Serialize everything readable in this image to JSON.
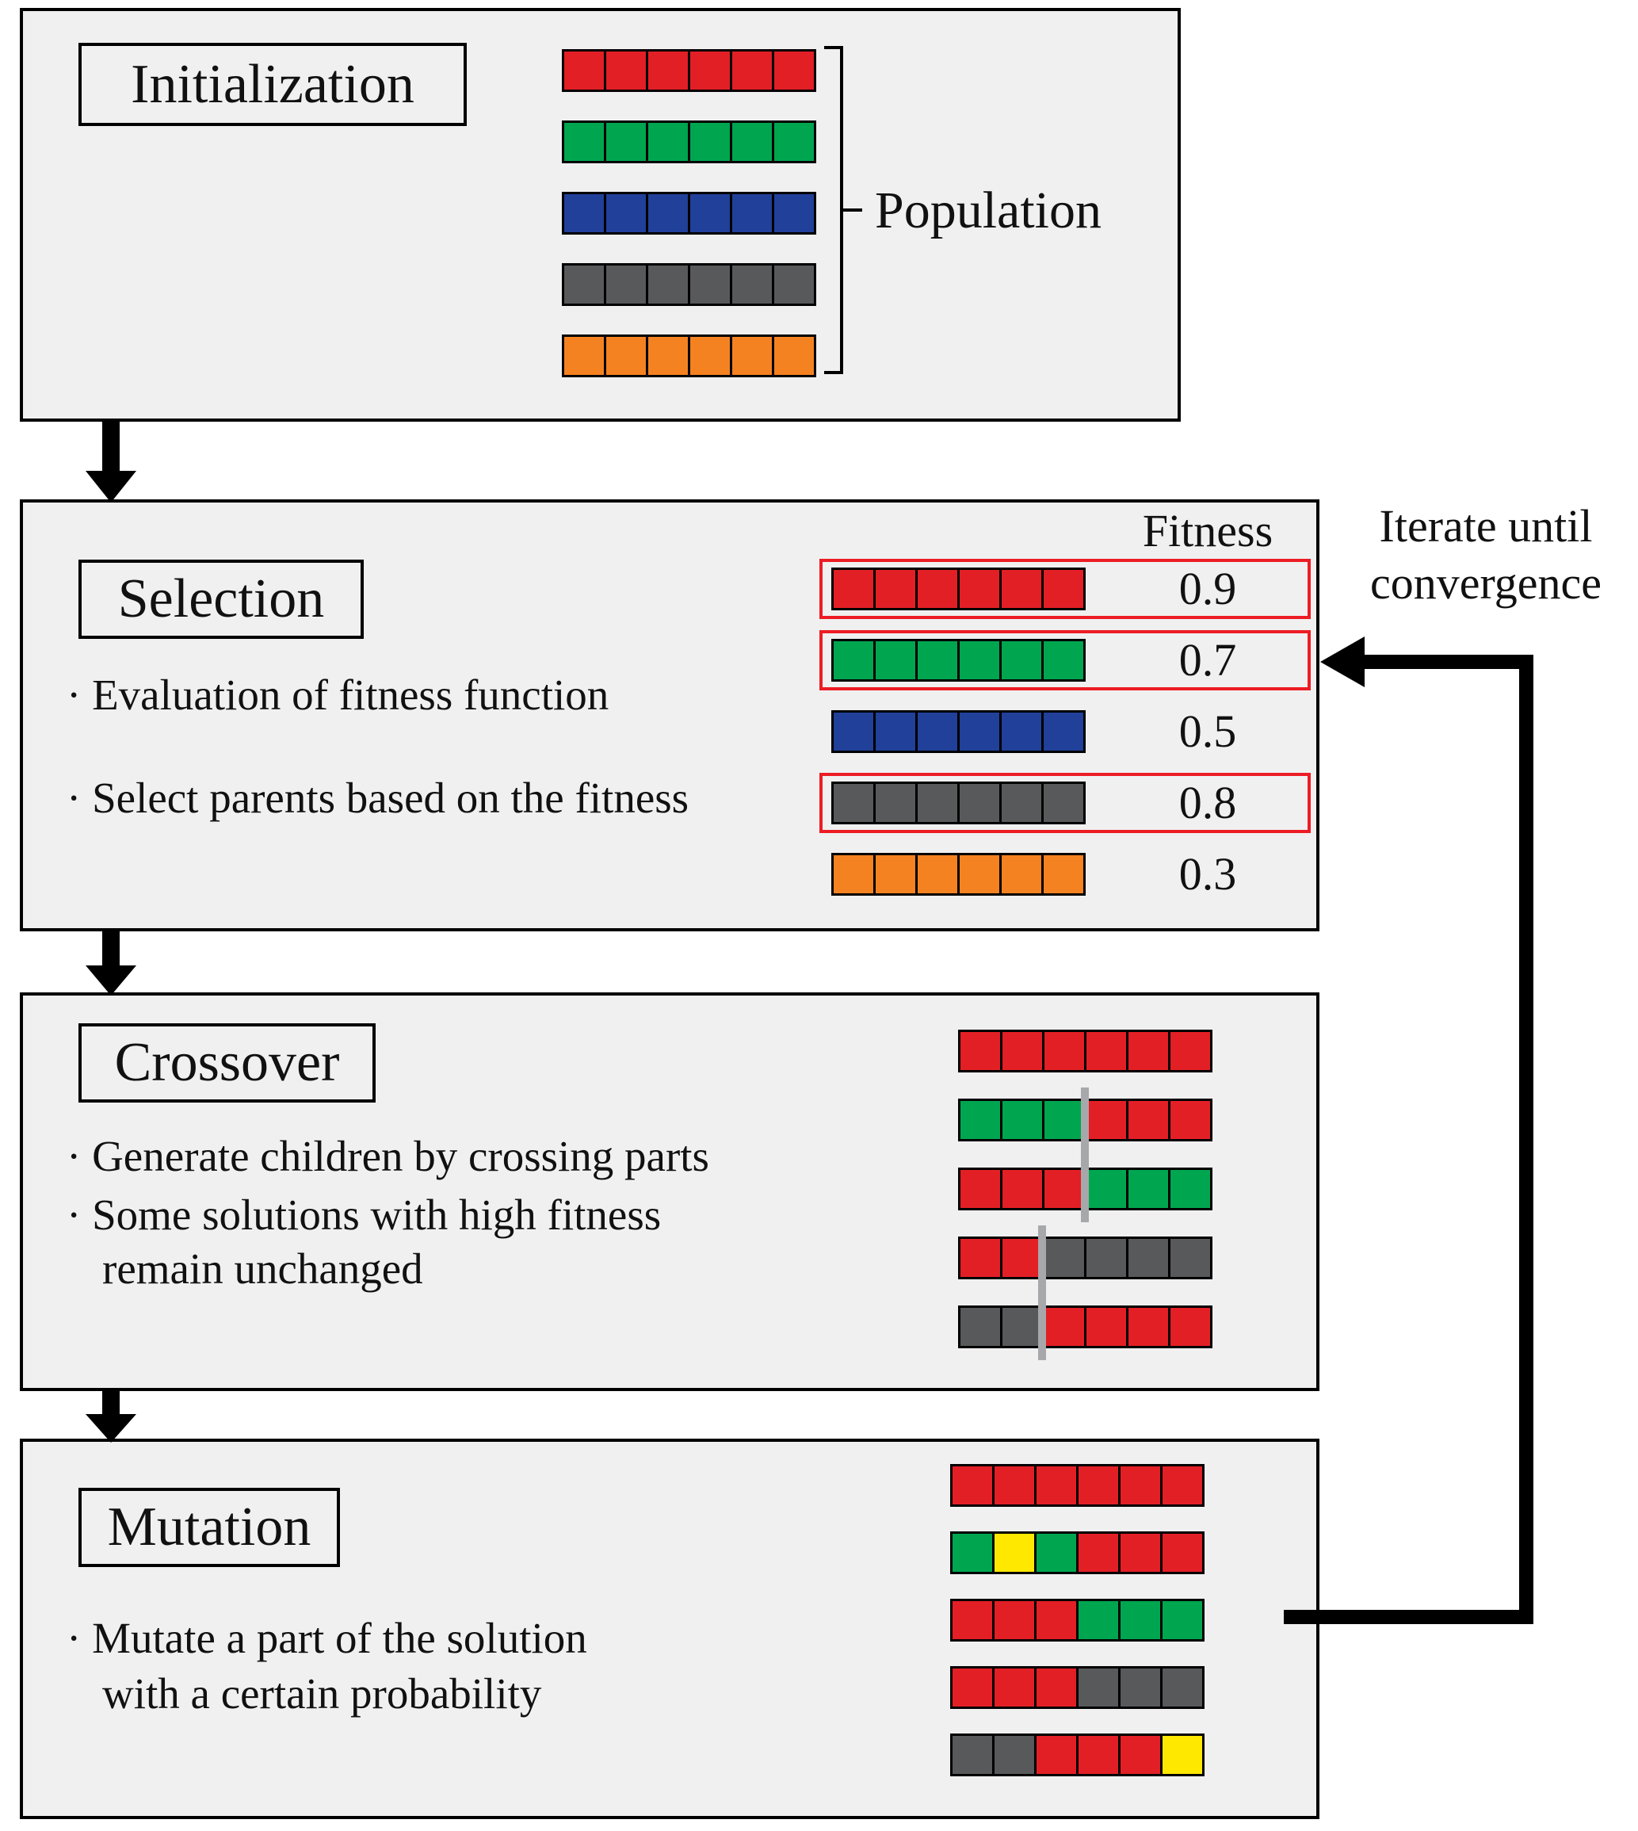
{
  "colors": {
    "red": "#e31f26",
    "green": "#00a64f",
    "blue": "#21409a",
    "gray": "#58595b",
    "orange": "#f58220",
    "yellow": "#ffe800",
    "panel_fill": "#f0f0f0",
    "selected_outline": "#ed1c24",
    "crossover_line": "#a6a8ab"
  },
  "initialization": {
    "title": "Initialization",
    "population_label": "Population",
    "bars": [
      [
        "red",
        "red",
        "red",
        "red",
        "red",
        "red"
      ],
      [
        "green",
        "green",
        "green",
        "green",
        "green",
        "green"
      ],
      [
        "blue",
        "blue",
        "blue",
        "blue",
        "blue",
        "blue"
      ],
      [
        "gray",
        "gray",
        "gray",
        "gray",
        "gray",
        "gray"
      ],
      [
        "orange",
        "orange",
        "orange",
        "orange",
        "orange",
        "orange"
      ]
    ]
  },
  "selection": {
    "title": "Selection",
    "fitness_header": "Fitness",
    "bullets": [
      "· Evaluation of fitness function",
      "· Select parents based on the fitness"
    ],
    "rows": [
      {
        "cells": [
          "red",
          "red",
          "red",
          "red",
          "red",
          "red"
        ],
        "fitness": "0.9",
        "selected": true
      },
      {
        "cells": [
          "green",
          "green",
          "green",
          "green",
          "green",
          "green"
        ],
        "fitness": "0.7",
        "selected": true
      },
      {
        "cells": [
          "blue",
          "blue",
          "blue",
          "blue",
          "blue",
          "blue"
        ],
        "fitness": "0.5",
        "selected": false
      },
      {
        "cells": [
          "gray",
          "gray",
          "gray",
          "gray",
          "gray",
          "gray"
        ],
        "fitness": "0.8",
        "selected": true
      },
      {
        "cells": [
          "orange",
          "orange",
          "orange",
          "orange",
          "orange",
          "orange"
        ],
        "fitness": "0.3",
        "selected": false
      }
    ]
  },
  "crossover": {
    "title": "Crossover",
    "bullets": [
      "· Generate children by crossing parts",
      "· Some solutions with high fitness",
      "remain unchanged"
    ],
    "bars": [
      [
        "red",
        "red",
        "red",
        "red",
        "red",
        "red"
      ],
      [
        "green",
        "green",
        "green",
        "red",
        "red",
        "red"
      ],
      [
        "red",
        "red",
        "red",
        "green",
        "green",
        "green"
      ],
      [
        "red",
        "red",
        "gray",
        "gray",
        "gray",
        "gray"
      ],
      [
        "gray",
        "gray",
        "red",
        "red",
        "red",
        "red"
      ]
    ]
  },
  "mutation": {
    "title": "Mutation",
    "bullets": [
      "· Mutate a part of the solution",
      "with a certain probability"
    ],
    "bars": [
      [
        "red",
        "red",
        "red",
        "red",
        "red",
        "red"
      ],
      [
        "green",
        "yellow",
        "green",
        "red",
        "red",
        "red"
      ],
      [
        "red",
        "red",
        "red",
        "green",
        "green",
        "green"
      ],
      [
        "red",
        "red",
        "red",
        "gray",
        "gray",
        "gray"
      ],
      [
        "gray",
        "gray",
        "red",
        "red",
        "red",
        "yellow"
      ]
    ]
  },
  "loop": {
    "label_lines": [
      "Iterate until",
      "convergence"
    ]
  }
}
